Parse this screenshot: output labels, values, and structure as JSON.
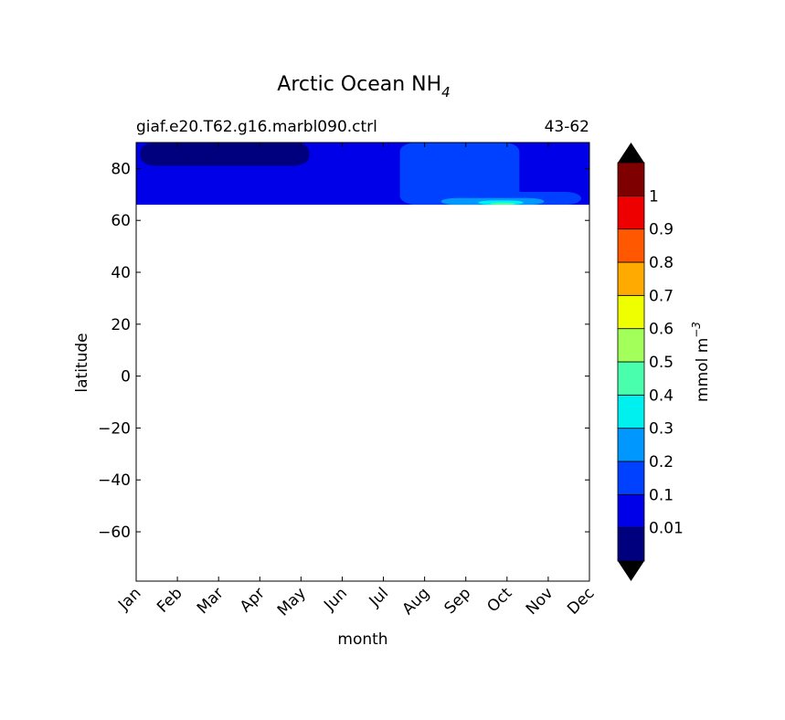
{
  "chart_data": {
    "type": "heatmap",
    "title": "Arctic Ocean NH",
    "title_subscript": "4",
    "subtitle_left": "giaf.e20.T62.g16.marbl090.ctrl",
    "subtitle_right": "43-62",
    "xlabel": "month",
    "ylabel": "latitude",
    "x_tick_labels": [
      "Jan",
      "Feb",
      "Mar",
      "Apr",
      "May",
      "Jun",
      "Jul",
      "Aug",
      "Sep",
      "Oct",
      "Nov",
      "Dec"
    ],
    "y_tick_values": [
      80,
      60,
      40,
      20,
      0,
      -20,
      -40,
      -60
    ],
    "y_tick_labels": [
      "80",
      "60",
      "40",
      "20",
      "0",
      "−20",
      "−40",
      "−60"
    ],
    "ylim": [
      -79,
      90
    ],
    "data_lat_range": [
      66,
      90
    ],
    "colorbar": {
      "label": "mmol m",
      "label_superscript": "−3",
      "levels": [
        0,
        0.01,
        0.1,
        0.2,
        0.3,
        0.4,
        0.5,
        0.6,
        0.7,
        0.8,
        0.9,
        1,
        1.1
      ],
      "tick_values": [
        0.01,
        0.1,
        0.2,
        0.3,
        0.4,
        0.5,
        0.6,
        0.7,
        0.8,
        0.9,
        1
      ],
      "tick_labels": [
        "0.01",
        "0.1",
        "0.2",
        "0.3",
        "0.4",
        "0.5",
        "0.6",
        "0.7",
        "0.8",
        "0.9",
        "1"
      ],
      "colors": [
        "#00007f",
        "#0000e8",
        "#0040ff",
        "#0098ff",
        "#00f0f0",
        "#49ffad",
        "#a3ff5a",
        "#f0ff00",
        "#ffaa00",
        "#ff5800",
        "#ee0000",
        "#7f0000"
      ],
      "under_color": "#000000",
      "over_color": "#000000",
      "extend": "both"
    },
    "field": {
      "background_level_value": 0.05,
      "regions": [
        {
          "value": 0.005,
          "month_start": 0.1,
          "month_end": 4.2,
          "lat_min": 81,
          "lat_max": 90
        },
        {
          "value": 0.15,
          "month_start": 6.4,
          "month_end": 9.3,
          "lat_min": 66,
          "lat_max": 90
        },
        {
          "value": 0.15,
          "month_start": 7.2,
          "month_end": 10.8,
          "lat_min": 66,
          "lat_max": 71
        },
        {
          "value": 0.25,
          "month_start": 7.4,
          "month_end": 9.9,
          "lat_min": 66,
          "lat_max": 68.6
        },
        {
          "value": 0.35,
          "month_start": 8.3,
          "month_end": 9.4,
          "lat_min": 66,
          "lat_max": 67.7
        },
        {
          "value": 0.45,
          "month_start": 8.6,
          "month_end": 9.2,
          "lat_min": 66,
          "lat_max": 66.9
        }
      ]
    }
  }
}
